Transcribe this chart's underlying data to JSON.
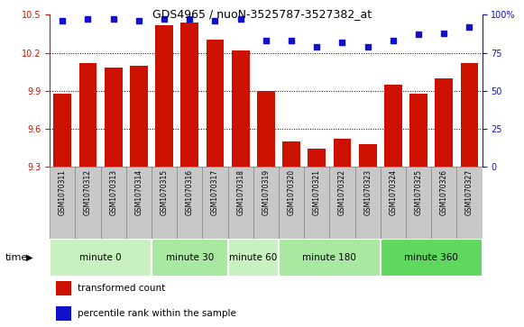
{
  "title": "GDS4965 / nuoN-3525787-3527382_at",
  "samples": [
    "GSM1070311",
    "GSM1070312",
    "GSM1070313",
    "GSM1070314",
    "GSM1070315",
    "GSM1070316",
    "GSM1070317",
    "GSM1070318",
    "GSM1070319",
    "GSM1070320",
    "GSM1070321",
    "GSM1070322",
    "GSM1070323",
    "GSM1070324",
    "GSM1070325",
    "GSM1070326",
    "GSM1070327"
  ],
  "bar_values": [
    9.88,
    10.12,
    10.08,
    10.1,
    10.42,
    10.44,
    10.3,
    10.22,
    9.9,
    9.5,
    9.44,
    9.52,
    9.48,
    9.95,
    9.88,
    10.0,
    10.12
  ],
  "dot_values": [
    96,
    97,
    97,
    96,
    97,
    97,
    96,
    97,
    83,
    83,
    79,
    82,
    79,
    83,
    87,
    88,
    92
  ],
  "groups": [
    {
      "label": "minute 0",
      "start": 0,
      "end": 4,
      "color": "#c8f0c0"
    },
    {
      "label": "minute 30",
      "start": 4,
      "end": 7,
      "color": "#a8e8a0"
    },
    {
      "label": "minute 60",
      "start": 7,
      "end": 9,
      "color": "#c8f0c0"
    },
    {
      "label": "minute 180",
      "start": 9,
      "end": 13,
      "color": "#a8e8a0"
    },
    {
      "label": "minute 360",
      "start": 13,
      "end": 17,
      "color": "#60d860"
    }
  ],
  "ylim_left": [
    9.3,
    10.5
  ],
  "ylim_right": [
    0,
    100
  ],
  "yticks_left": [
    9.3,
    9.6,
    9.9,
    10.2,
    10.5
  ],
  "yticks_right": [
    0,
    25,
    50,
    75,
    100
  ],
  "gridlines": [
    9.6,
    9.9,
    10.2
  ],
  "bar_color": "#cc1100",
  "dot_color": "#1111cc",
  "left_tick_color": "#cc1100",
  "right_tick_color": "#1111cc",
  "gray_cell_color": "#c8c8c8",
  "cell_border_color": "#888888"
}
